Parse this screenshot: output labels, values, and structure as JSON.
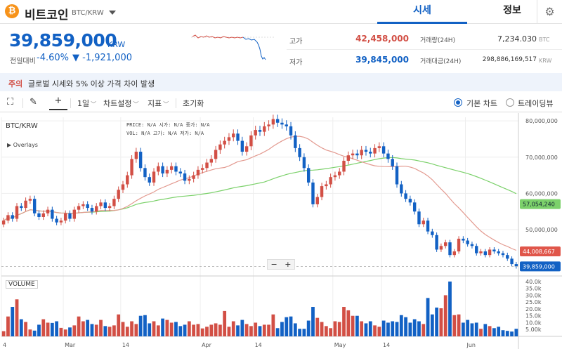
{
  "header": {
    "coin_symbol": "₿",
    "coin_name": "비트코인",
    "coin_code": "BTC/KRW",
    "tabs": [
      "시세",
      "정보"
    ],
    "settings_icon": "gear-icon"
  },
  "price": {
    "value": "39,859,000",
    "unit": "KRW",
    "change_label": "전일대비",
    "change_rate": "-4.60%",
    "change_amount": "▼ -1,921,000"
  },
  "stats": {
    "high_label": "고가",
    "high_value": "42,458,000",
    "low_label": "저가",
    "low_value": "39,845,000",
    "volume_label": "거래량(24H)",
    "volume_value": "7,234.030",
    "volume_unit": "BTC",
    "amount_label": "거래대금(24H)",
    "amount_value": "298,886,169,517",
    "amount_unit": "KRW"
  },
  "notice": {
    "tag": "주의",
    "text": "글로벌 시세와 5% 이상 가격 차이 발생"
  },
  "toolbar": {
    "interval": "1일",
    "chart_settings": "차트설정",
    "indicators": "지표",
    "reset": "초기화",
    "basic_chart": "기본 차트",
    "trading_view": "트레이딩뷰"
  },
  "chart": {
    "symbol": "BTC/KRW",
    "overlays": "Overlays",
    "ohlc_line1": "PRICE: N/A   시가: N/A   종가: N/A",
    "ohlc_line2": "VOL:   N/A   고가: N/A   저가: N/A",
    "volume_label": "VOLUME",
    "zoom_minus": "−",
    "zoom_plus": "+",
    "up_color": "#d24f45",
    "down_color": "#1261c4"
  },
  "chart_data": {
    "type": "candlestick",
    "price_axis_labels": [
      "80,000,000",
      "70,000,000",
      "60,000,000",
      "50,000,000"
    ],
    "price_axis_values": [
      80000000,
      70000000,
      60000000,
      50000000
    ],
    "volume_axis_labels": [
      "40.0k",
      "35.0k",
      "30.0k",
      "25.0k",
      "20.0k",
      "15.0k",
      "10.0k",
      "5.00k"
    ],
    "volume_axis_values": [
      40000,
      35000,
      30000,
      25000,
      20000,
      15000,
      10000,
      5000
    ],
    "x_labels": [
      "4",
      "Mar",
      "14",
      "Apr",
      "14",
      "May",
      "14",
      "Jun"
    ],
    "ma_short_label": "44,008,667",
    "ma_short_value": 44008667,
    "ma_long_label": "57,054,240",
    "ma_long_value": 57054240,
    "last_price_label": "39,859,000",
    "last_price_value": 39859000,
    "ylim": [
      38000000,
      81000000
    ],
    "series": [
      {
        "name": "BTC/KRW",
        "close": [
          52500000,
          54000000,
          53000000,
          56500000,
          56000000,
          58000000,
          58500000,
          54500000,
          53500000,
          54500000,
          55500000,
          53000000,
          52000000,
          52500000,
          54500000,
          53000000,
          55500000,
          56500000,
          57000000,
          56000000,
          55000000,
          56500000,
          57500000,
          56000000,
          56500000,
          58500000,
          61000000,
          62500000,
          65000000,
          69500000,
          71500000,
          67000000,
          64500000,
          63000000,
          66000000,
          67500000,
          65500000,
          66500000,
          67500000,
          66000000,
          65500000,
          63500000,
          64000000,
          65000000,
          66500000,
          67000000,
          68500000,
          69500000,
          72000000,
          73500000,
          74500000,
          75500000,
          76500000,
          74500000,
          71500000,
          73000000,
          76000000,
          77500000,
          77000000,
          78500000,
          79000000,
          80500000,
          79500000,
          79000000,
          78500000,
          76000000,
          72500000,
          70000000,
          67000000,
          63000000,
          57000000,
          59000000,
          62000000,
          62500000,
          64500000,
          65000000,
          66000000,
          69000000,
          70500000,
          71000000,
          70500000,
          72000000,
          71500000,
          71000000,
          72500000,
          73000000,
          71000000,
          69500000,
          67500000,
          62500000,
          60000000,
          58500000,
          57500000,
          55000000,
          51500000,
          52500000,
          49500000,
          48500000,
          44500000,
          45500000,
          46500000,
          43000000,
          44000000,
          47500000,
          47000000,
          46000000,
          45500000,
          43500000,
          44000000,
          43000000,
          44500000,
          44000000,
          43500000,
          43000000,
          42000000,
          40500000,
          39859000
        ],
        "volume": [
          3800,
          14500,
          21500,
          27000,
          12500,
          10500,
          5000,
          4200,
          8500,
          12500,
          10000,
          9800,
          11000,
          6200,
          5000,
          6500,
          8000,
          14500,
          11000,
          12000,
          9000,
          8500,
          12000,
          7500,
          7000,
          8000,
          16000,
          10500,
          7000,
          11000,
          9000,
          15000,
          15500,
          9500,
          11000,
          8000,
          13000,
          12000,
          10000,
          10500,
          7500,
          8500,
          11000,
          8500,
          9000,
          5800,
          7000,
          8500,
          9500,
          8500,
          18500,
          7000,
          11000,
          8000,
          12000,
          9000,
          7500,
          10000,
          7500,
          8500,
          8500,
          16000,
          6000,
          10500,
          14000,
          14500,
          9500,
          5500,
          5500,
          11500,
          21500,
          13500,
          10500,
          7500,
          6000,
          11000,
          10500,
          21500,
          19000,
          15000,
          15000,
          11000,
          9500,
          11000,
          8000,
          7000,
          11500,
          10000,
          11000,
          10500,
          15500,
          14000,
          10000,
          12500,
          11000,
          9000,
          28000,
          16000,
          21000,
          20500,
          30000,
          40000,
          15500,
          16000,
          10000,
          12000,
          9500,
          10000,
          5500,
          9000,
          7500,
          6000,
          7000,
          4500,
          4000,
          3500,
          5500
        ]
      }
    ]
  }
}
